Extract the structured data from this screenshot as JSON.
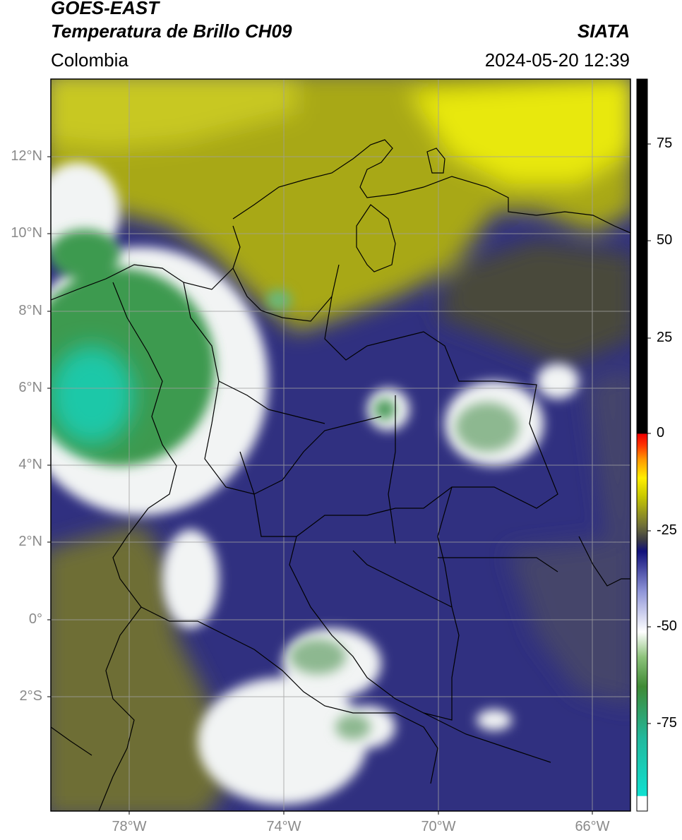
{
  "header": {
    "satellite": "GOES-EAST",
    "product": "Temperatura de Brillo CH09",
    "agency": "SIATA",
    "region": "Colombia",
    "datetime": "2024-05-20 12:39"
  },
  "map": {
    "projection": "PlateCarree",
    "lon_range": [
      -80,
      -65
    ],
    "lat_range": [
      -5,
      14
    ],
    "lat_ticks": [
      "12°N",
      "10°N",
      "8°N",
      "6°N",
      "4°N",
      "2°N",
      "0°",
      "2°S"
    ],
    "lon_ticks": [
      "78°W",
      "74°W",
      "70°W",
      "66°W"
    ],
    "gridlines": true,
    "layers": [
      "brightness-temperature-raster",
      "coastlines",
      "country-borders",
      "department-borders"
    ]
  },
  "colorbar": {
    "orientation": "vertical",
    "range": [
      -95,
      90
    ],
    "ticks": [
      "75",
      "50",
      "25",
      "0",
      "-25",
      "-50",
      "-75"
    ],
    "colors": {
      "white_bottom": "#ffffff",
      "cyan": "#10d9c8",
      "teal": "#2ea38a",
      "green": "#3f8a35",
      "light_green": "#9ecf8a",
      "white": "#f4f6f4",
      "light_blue": "#8f95d8",
      "navy": "#1a1a86",
      "dark_olive": "#3d3d2a",
      "olive": "#8a8a2a",
      "yellow": "#e6e60a",
      "orange": "#ff8c00",
      "red": "#ff1a00",
      "black": "#000000"
    }
  }
}
